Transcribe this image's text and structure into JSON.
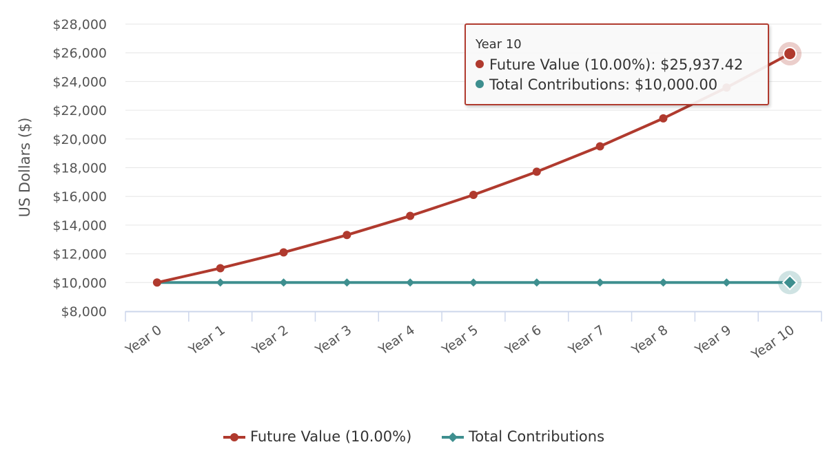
{
  "chart_data": {
    "type": "line",
    "title": "",
    "xlabel": "",
    "ylabel": "US Dollars ($)",
    "categories": [
      "Year 0",
      "Year 1",
      "Year 2",
      "Year 3",
      "Year 4",
      "Year 5",
      "Year 6",
      "Year 7",
      "Year 8",
      "Year 9",
      "Year 10"
    ],
    "ylim": [
      8000,
      28000
    ],
    "yticks": [
      8000,
      10000,
      12000,
      14000,
      16000,
      18000,
      20000,
      22000,
      24000,
      26000,
      28000
    ],
    "ytick_labels": [
      "$8,000",
      "$10,000",
      "$12,000",
      "$14,000",
      "$16,000",
      "$18,000",
      "$20,000",
      "$22,000",
      "$24,000",
      "$26,000",
      "$28,000"
    ],
    "grid": true,
    "series": [
      {
        "name": "Future Value (10.00%)",
        "color": "#b03a2e",
        "marker": "circle",
        "values": [
          10000,
          11000,
          12100,
          13310,
          14641,
          16105.1,
          17715.61,
          19487.17,
          21435.89,
          23579.48,
          25937.42
        ]
      },
      {
        "name": "Total Contributions",
        "color": "#3e8f8f",
        "marker": "diamond",
        "values": [
          10000,
          10000,
          10000,
          10000,
          10000,
          10000,
          10000,
          10000,
          10000,
          10000,
          10000
        ]
      }
    ],
    "legend_position": "bottom",
    "tooltip": {
      "header": "Year 10",
      "rows": [
        {
          "label": "Future Value (10.00%): ",
          "value": "$25,937.42",
          "color": "#b03a2e"
        },
        {
          "label": "Total Contributions: ",
          "value": "$10,000.00",
          "color": "#3e8f8f"
        }
      ]
    }
  }
}
